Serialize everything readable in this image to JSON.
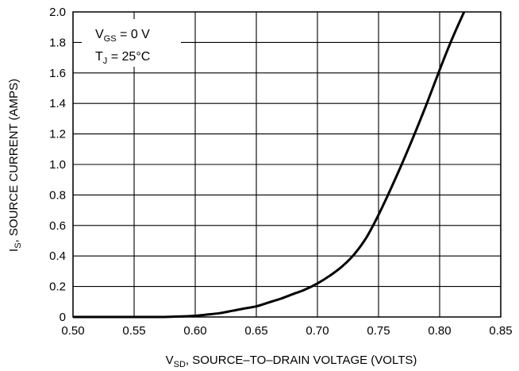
{
  "chart_data": {
    "type": "line",
    "title": "",
    "xlabel": {
      "main": "V",
      "sub": "SD",
      "rest": ", SOURCE–TO–DRAIN VOLTAGE (VOLTS)"
    },
    "ylabel": {
      "main": "I",
      "sub": "S",
      "rest": ", SOURCE CURRENT (AMPS)"
    },
    "xlim": [
      0.5,
      0.85
    ],
    "ylim": [
      0,
      2.0
    ],
    "x_ticks": [
      0.5,
      0.55,
      0.6,
      0.65,
      0.7,
      0.75,
      0.8,
      0.85
    ],
    "x_tick_labels": [
      "0.50",
      "0.55",
      "0.60",
      "0.65",
      "0.70",
      "0.75",
      "0.80",
      "0.85"
    ],
    "y_ticks": [
      0,
      0.2,
      0.4,
      0.6,
      0.8,
      1.0,
      1.2,
      1.4,
      1.6,
      1.8,
      2.0
    ],
    "y_tick_labels": [
      "0",
      "0.2",
      "0.4",
      "0.6",
      "0.8",
      "1.0",
      "1.2",
      "1.4",
      "1.6",
      "1.8",
      "2.0"
    ],
    "grid": true,
    "legend_position": "top-left",
    "conditions": [
      {
        "main": "V",
        "sub": "GS",
        "rest": " = 0 V"
      },
      {
        "main": "T",
        "sub": "J",
        "rest": " = 25°C"
      }
    ],
    "series": [
      {
        "x": [
          0.5,
          0.55,
          0.57,
          0.59,
          0.6,
          0.61,
          0.62,
          0.63,
          0.64,
          0.65,
          0.66,
          0.67,
          0.68,
          0.69,
          0.7,
          0.71,
          0.72,
          0.73,
          0.74,
          0.75,
          0.76,
          0.77,
          0.78,
          0.79,
          0.8,
          0.81,
          0.82
        ],
        "y": [
          0,
          0,
          0,
          0.004,
          0.008,
          0.016,
          0.025,
          0.04,
          0.055,
          0.07,
          0.095,
          0.12,
          0.15,
          0.18,
          0.22,
          0.27,
          0.33,
          0.41,
          0.52,
          0.67,
          0.84,
          1.02,
          1.21,
          1.41,
          1.62,
          1.82,
          2.0
        ]
      }
    ],
    "line_color": "#000000"
  }
}
